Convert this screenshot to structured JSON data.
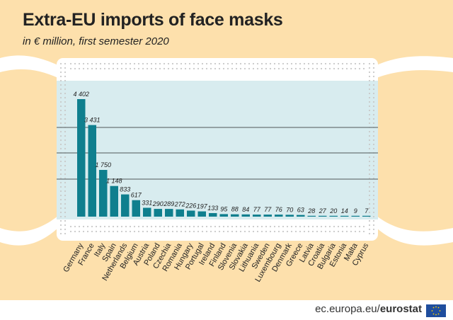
{
  "title": "Extra-EU imports of face masks",
  "subtitle": "in € million, first semester 2020",
  "footer": {
    "source_prefix": "ec.europa.eu/",
    "source_brand": "eurostat"
  },
  "colors": {
    "bar": "#0f7f8e",
    "mask": "#d8ecef",
    "background": "#fde0ac",
    "strap": "#ffffff",
    "gridline": "#7d8a8c"
  },
  "chart_data": {
    "type": "bar",
    "title": "Extra-EU imports of face masks",
    "subtitle": "in € million, first semester 2020",
    "xlabel": "",
    "ylabel": "",
    "ylim": [
      0,
      4402
    ],
    "categories": [
      "Germany",
      "France",
      "Italy",
      "Spain",
      "Netherlands",
      "Belgium",
      "Austria",
      "Poland",
      "Czechia",
      "Romania",
      "Hungary",
      "Portugal",
      "Ireland",
      "Finland",
      "Slovenia",
      "Slovakia",
      "Lithuania",
      "Sweden",
      "Luxembourg",
      "Denmark",
      "Greece",
      "Latvia",
      "Croatia",
      "Bulgaria",
      "Estonia",
      "Malta",
      "Cyprus"
    ],
    "values": [
      4402,
      3431,
      1750,
      1148,
      833,
      617,
      331,
      290,
      289,
      272,
      226,
      197,
      133,
      95,
      88,
      84,
      77,
      77,
      76,
      70,
      63,
      28,
      27,
      20,
      14,
      9,
      7
    ],
    "labels": [
      "4 402",
      "3 431",
      "1 750",
      "1 148",
      "833",
      "617",
      "331",
      "290",
      "289",
      "272",
      "226",
      "197",
      "133",
      "95",
      "88",
      "84",
      "77",
      "77",
      "76",
      "70",
      "63",
      "28",
      "27",
      "20",
      "14",
      "9",
      "7"
    ]
  }
}
